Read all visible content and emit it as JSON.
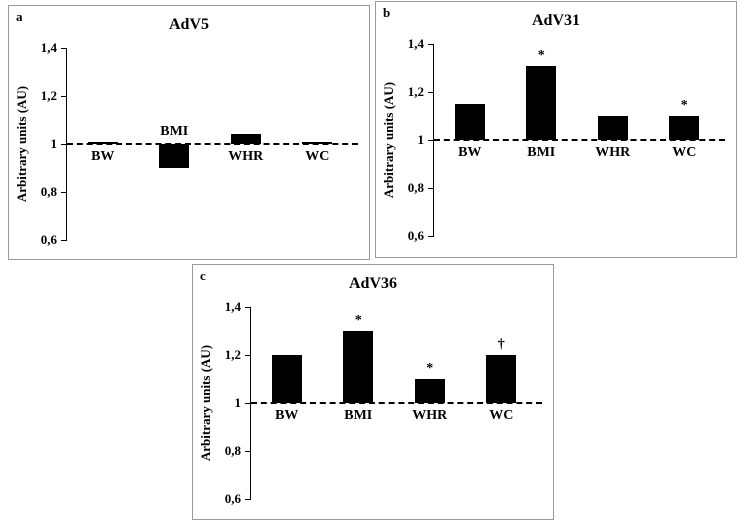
{
  "figure": {
    "background": "#ffffff",
    "panel_border_color": "#9b9b9b",
    "bar_color": "#000000"
  },
  "axis": {
    "ylabel": "Arbitrary units (AU)",
    "ymin": 0.6,
    "ymax": 1.4,
    "baseline": 1.0,
    "ticks": [
      {
        "value": 1.4,
        "label": "1,4"
      },
      {
        "value": 1.2,
        "label": "1,2"
      },
      {
        "value": 1.0,
        "label": "1"
      },
      {
        "value": 0.8,
        "label": "0,8"
      },
      {
        "value": 0.6,
        "label": "0,6"
      }
    ]
  },
  "chart_data": [
    {
      "type": "bar",
      "panel": "a",
      "title": "AdV5",
      "categories": [
        "BW",
        "BMI",
        "WHR",
        "WC"
      ],
      "values": [
        1.0,
        0.9,
        1.04,
        1.0
      ],
      "annotations": [
        "",
        "",
        "",
        ""
      ],
      "xlabel": "",
      "ylabel": "Arbitrary units (AU)",
      "ylim": [
        0.6,
        1.4
      ],
      "baseline": 1.0,
      "grid": false,
      "legend": "none"
    },
    {
      "type": "bar",
      "panel": "b",
      "title": "AdV31",
      "categories": [
        "BW",
        "BMI",
        "WHR",
        "WC"
      ],
      "values": [
        1.15,
        1.31,
        1.1,
        1.1
      ],
      "annotations": [
        "",
        "*",
        "",
        "*"
      ],
      "xlabel": "",
      "ylabel": "Arbitrary units (AU)",
      "ylim": [
        0.6,
        1.4
      ],
      "baseline": 1.0,
      "grid": false,
      "legend": "none"
    },
    {
      "type": "bar",
      "panel": "c",
      "title": "AdV36",
      "categories": [
        "BW",
        "BMI",
        "WHR",
        "WC"
      ],
      "values": [
        1.2,
        1.3,
        1.1,
        1.2
      ],
      "annotations": [
        "",
        "*",
        "*",
        "†"
      ],
      "xlabel": "",
      "ylabel": "Arbitrary units (AU)",
      "ylim": [
        0.6,
        1.4
      ],
      "baseline": 1.0,
      "grid": false,
      "legend": "none"
    }
  ]
}
